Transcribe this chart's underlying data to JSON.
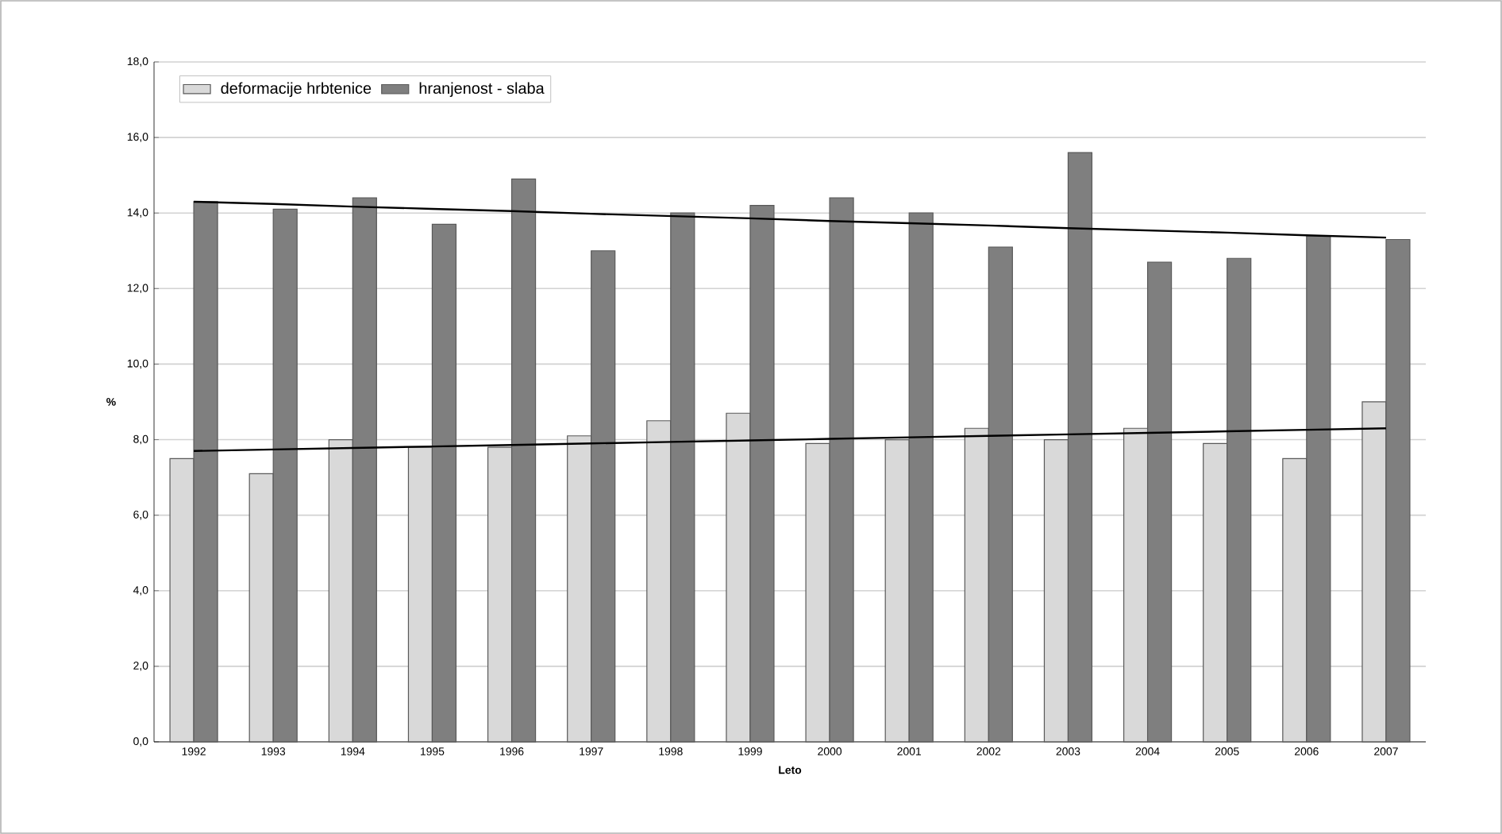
{
  "chart_data": {
    "type": "bar",
    "xlabel": "Leto",
    "ylabel": "%",
    "categories": [
      "1992",
      "1993",
      "1994",
      "1995",
      "1996",
      "1997",
      "1998",
      "1999",
      "2000",
      "2001",
      "2002",
      "2003",
      "2004",
      "2005",
      "2006",
      "2007"
    ],
    "series": [
      {
        "name": "deformacije hrbtenice",
        "color": "#d9d9d9",
        "values": [
          7.5,
          7.1,
          8.0,
          7.8,
          7.8,
          8.1,
          8.5,
          8.7,
          7.9,
          8.0,
          8.3,
          8.0,
          8.3,
          7.9,
          7.5,
          9.0
        ]
      },
      {
        "name": "hranjenost - slaba",
        "color": "#7f7f7f",
        "values": [
          14.3,
          14.1,
          14.4,
          13.7,
          14.9,
          13.0,
          14.0,
          14.2,
          14.4,
          14.0,
          13.1,
          15.6,
          12.7,
          12.8,
          13.4,
          13.3
        ]
      },
      {
        "type": "line",
        "color": "#000000",
        "values": [
          14.3,
          14.24,
          14.17,
          14.11,
          14.05,
          13.98,
          13.92,
          13.86,
          13.79,
          13.73,
          13.67,
          13.6,
          13.54,
          13.48,
          13.41,
          13.35
        ]
      },
      {
        "type": "line",
        "color": "#000000",
        "values": [
          7.7,
          7.74,
          7.78,
          7.82,
          7.86,
          7.9,
          7.94,
          7.98,
          8.02,
          8.06,
          8.1,
          8.14,
          8.18,
          8.22,
          8.26,
          8.3
        ]
      }
    ],
    "ylim": [
      0,
      18
    ],
    "yticks": [
      {
        "value": 0,
        "label": "0,0"
      },
      {
        "value": 2,
        "label": "2,0"
      },
      {
        "value": 4,
        "label": "4,0"
      },
      {
        "value": 6,
        "label": "6,0"
      },
      {
        "value": 8,
        "label": "8,0"
      },
      {
        "value": 10,
        "label": "10,0"
      },
      {
        "value": 12,
        "label": "12,0"
      },
      {
        "value": 14,
        "label": "14,0"
      },
      {
        "value": 16,
        "label": "16,0"
      },
      {
        "value": 18,
        "label": "18,0"
      }
    ],
    "grid": "y",
    "legend": "top left"
  }
}
